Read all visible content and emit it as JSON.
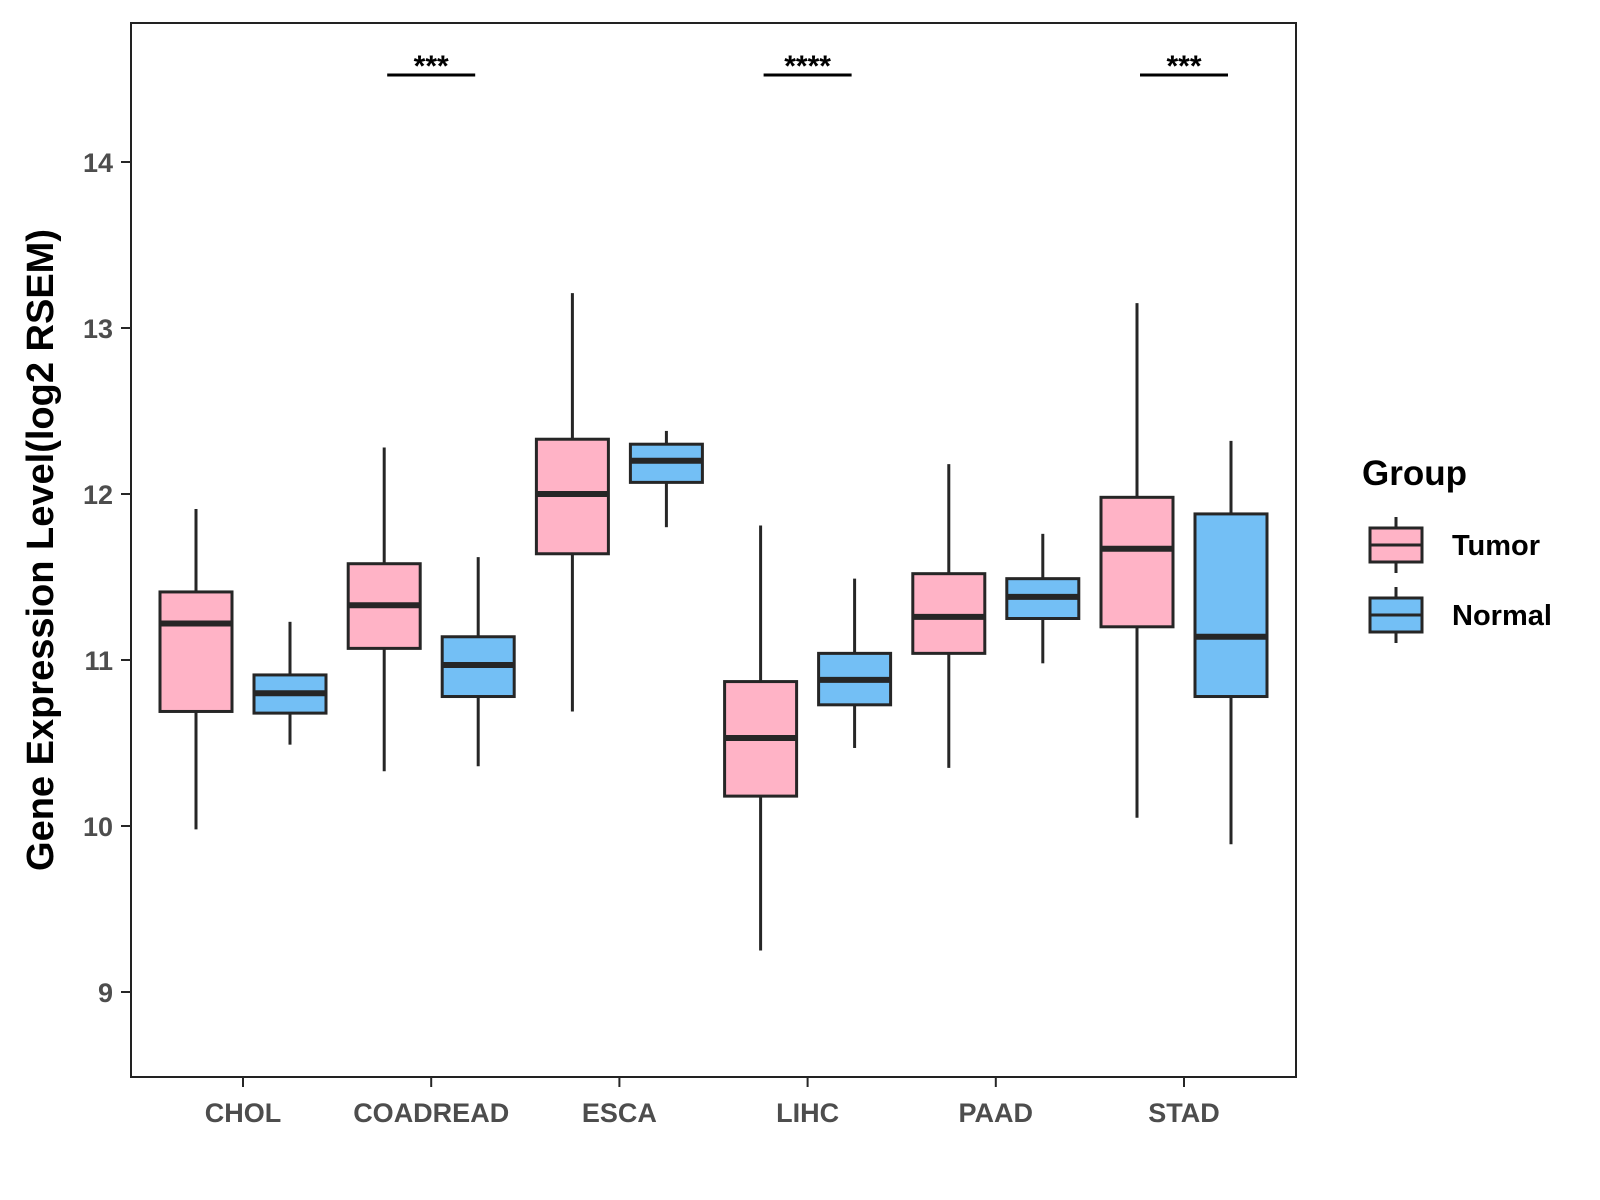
{
  "chart_data": {
    "type": "boxplot",
    "title": "",
    "xlabel": "",
    "ylabel": "Gene Expression Level(log2 RSEM)",
    "ylim": [
      8.5,
      14.85
    ],
    "yticks": [
      "9",
      "10",
      "11",
      "12",
      "13",
      "14"
    ],
    "grid": false,
    "legend_position": "right",
    "legend": {
      "title": "Group",
      "items": [
        {
          "label": "Tumor",
          "color": "#ffb3c6"
        },
        {
          "label": "Normal",
          "color": "#73bff5"
        }
      ]
    },
    "categories": [
      "CHOL",
      "COADREAD",
      "ESCA",
      "LIHC",
      "PAAD",
      "STAD"
    ],
    "series": [
      {
        "name": "Tumor",
        "color": "#ffb3c6",
        "boxes": [
          {
            "min": 9.98,
            "q1": 10.69,
            "median": 11.22,
            "q3": 11.41,
            "max": 11.91
          },
          {
            "min": 10.33,
            "q1": 11.07,
            "median": 11.33,
            "q3": 11.58,
            "max": 12.28
          },
          {
            "min": 10.69,
            "q1": 11.64,
            "median": 12.0,
            "q3": 12.33,
            "max": 13.21
          },
          {
            "min": 9.25,
            "q1": 10.18,
            "median": 10.53,
            "q3": 10.87,
            "max": 11.81
          },
          {
            "min": 10.35,
            "q1": 11.04,
            "median": 11.26,
            "q3": 11.52,
            "max": 12.18
          },
          {
            "min": 10.05,
            "q1": 11.2,
            "median": 11.67,
            "q3": 11.98,
            "max": 13.15
          }
        ]
      },
      {
        "name": "Normal",
        "color": "#73bff5",
        "boxes": [
          {
            "min": 10.49,
            "q1": 10.68,
            "median": 10.8,
            "q3": 10.91,
            "max": 11.23
          },
          {
            "min": 10.36,
            "q1": 10.78,
            "median": 10.97,
            "q3": 11.14,
            "max": 11.62
          },
          {
            "min": 11.8,
            "q1": 12.07,
            "median": 12.2,
            "q3": 12.3,
            "max": 12.38
          },
          {
            "min": 10.47,
            "q1": 10.73,
            "median": 10.88,
            "q3": 11.04,
            "max": 11.49
          },
          {
            "min": 10.98,
            "q1": 11.25,
            "median": 11.38,
            "q3": 11.49,
            "max": 11.76
          },
          {
            "min": 9.89,
            "q1": 10.78,
            "median": 11.14,
            "q3": 11.88,
            "max": 12.32
          }
        ]
      }
    ],
    "significance": [
      {
        "category": "COADREAD",
        "label": "***"
      },
      {
        "category": "LIHC",
        "label": "****"
      },
      {
        "category": "STAD",
        "label": "***"
      }
    ]
  }
}
